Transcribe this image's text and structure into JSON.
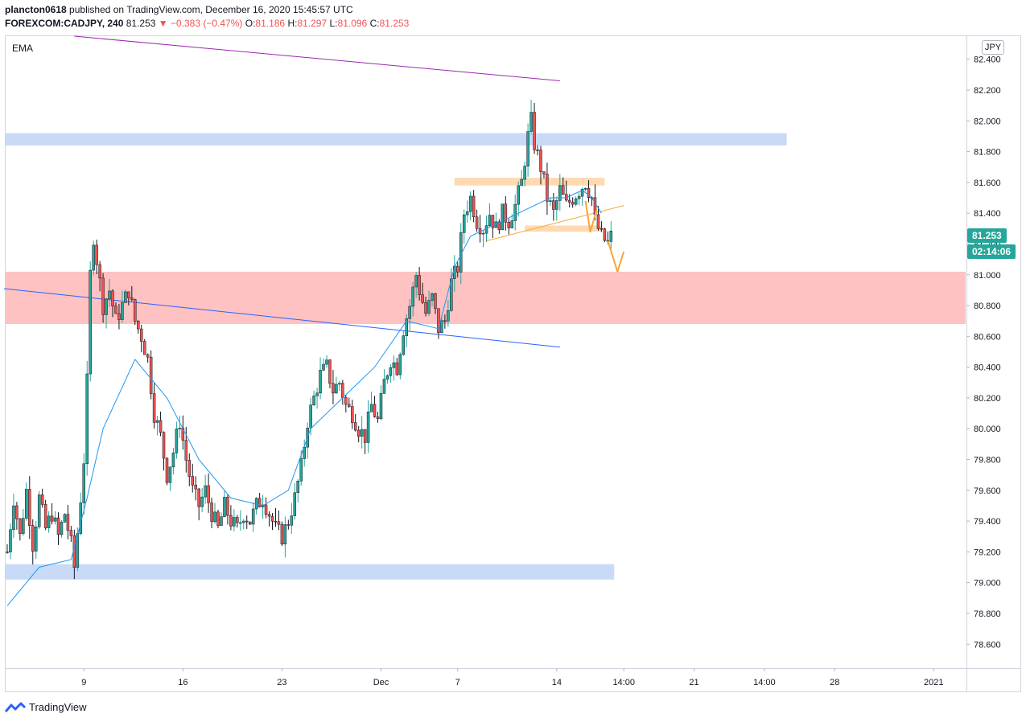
{
  "header": {
    "publisher": "plancton0618",
    "published_text": "published on TradingView.com, December 16, 2020 15:45:57 UTC",
    "symbol": "FOREXCOM:CADJPY",
    "interval": ", 240",
    "last": "81.253",
    "change": "▼ −0.383 (−0.47%)",
    "o_label": "O:",
    "o_value": "81.186",
    "h_label": "H:",
    "h_value": "81.297",
    "l_label": "L:",
    "l_value": "81.096",
    "c_label": "C:",
    "c_value": "81.253"
  },
  "indicator_label": "EMA",
  "currency_badge": "JPY",
  "price_tag": "81.253",
  "countdown_tag": "02:14:06",
  "footer": {
    "brand": "TradingView"
  },
  "colors": {
    "up": "#26a69a",
    "down": "#ef5350",
    "candle": "#131722",
    "ema": "#2196f3",
    "blue_zone": "#bbd1f5",
    "red_zone": "#ffb3b3",
    "orange_zone": "#ffd5a8",
    "purple_line": "#9c27b0",
    "orange_line": "#f7a634"
  },
  "chart_data": {
    "type": "candlestick",
    "title": "FOREXCOM:CADJPY, 240",
    "ylim": [
      78.45,
      82.55
    ],
    "xlim": [
      -0.5,
      300
    ],
    "y_ticks": [
      "78.600",
      "78.800",
      "79.000",
      "79.200",
      "79.400",
      "79.600",
      "79.800",
      "80.000",
      "80.200",
      "80.400",
      "80.600",
      "80.800",
      "81.000",
      "81.200",
      "81.400",
      "81.600",
      "81.800",
      "82.000",
      "82.200",
      "82.400"
    ],
    "x_ticks": [
      {
        "label": "9",
        "x": 24
      },
      {
        "label": "16",
        "x": 55
      },
      {
        "label": "23",
        "x": 86
      },
      {
        "label": "Dec",
        "x": 117
      },
      {
        "label": "7",
        "x": 141
      },
      {
        "label": "14",
        "x": 172
      },
      {
        "label": "14:00",
        "x": 193
      },
      {
        "label": "21",
        "x": 215
      },
      {
        "label": "14:00",
        "x": 237
      },
      {
        "label": "28",
        "x": 259
      },
      {
        "label": "2021",
        "x": 290
      }
    ],
    "close_path": [
      [
        0,
        79.2
      ],
      [
        2,
        79.55
      ],
      [
        4,
        79.3
      ],
      [
        6,
        79.6
      ],
      [
        8,
        79.25
      ],
      [
        10,
        79.55
      ],
      [
        12,
        79.35
      ],
      [
        14,
        79.45
      ],
      [
        16,
        79.3
      ],
      [
        18,
        79.45
      ],
      [
        20,
        79.25
      ],
      [
        21,
        79.1
      ],
      [
        23,
        79.55
      ],
      [
        24,
        79.8
      ],
      [
        25,
        80.3
      ],
      [
        26,
        81.0
      ],
      [
        27,
        81.25
      ],
      [
        28,
        81.1
      ],
      [
        30,
        80.8
      ],
      [
        32,
        80.9
      ],
      [
        34,
        80.7
      ],
      [
        36,
        80.8
      ],
      [
        38,
        80.9
      ],
      [
        40,
        80.7
      ],
      [
        42,
        80.6
      ],
      [
        44,
        80.45
      ],
      [
        46,
        80.1
      ],
      [
        48,
        79.95
      ],
      [
        50,
        79.7
      ],
      [
        52,
        79.85
      ],
      [
        54,
        80.05
      ],
      [
        56,
        79.8
      ],
      [
        58,
        79.6
      ],
      [
        60,
        79.5
      ],
      [
        62,
        79.6
      ],
      [
        64,
        79.45
      ],
      [
        66,
        79.35
      ],
      [
        68,
        79.5
      ],
      [
        70,
        79.4
      ],
      [
        72,
        79.35
      ],
      [
        74,
        79.45
      ],
      [
        76,
        79.4
      ],
      [
        78,
        79.5
      ],
      [
        80,
        79.55
      ],
      [
        82,
        79.45
      ],
      [
        84,
        79.35
      ],
      [
        86,
        79.3
      ],
      [
        88,
        79.4
      ],
      [
        90,
        79.55
      ],
      [
        92,
        79.75
      ],
      [
        94,
        80.05
      ],
      [
        96,
        80.2
      ],
      [
        98,
        80.35
      ],
      [
        100,
        80.4
      ],
      [
        102,
        80.25
      ],
      [
        104,
        80.3
      ],
      [
        106,
        80.15
      ],
      [
        108,
        80.1
      ],
      [
        110,
        80.0
      ],
      [
        112,
        79.95
      ],
      [
        114,
        80.15
      ],
      [
        116,
        80.05
      ],
      [
        118,
        80.3
      ],
      [
        120,
        80.45
      ],
      [
        122,
        80.4
      ],
      [
        124,
        80.65
      ],
      [
        126,
        80.8
      ],
      [
        128,
        81.0
      ],
      [
        129,
        80.9
      ],
      [
        131,
        80.75
      ],
      [
        133,
        80.85
      ],
      [
        135,
        80.65
      ],
      [
        137,
        80.7
      ],
      [
        139,
        80.95
      ],
      [
        141,
        81.05
      ],
      [
        143,
        81.4
      ],
      [
        145,
        81.5
      ],
      [
        147,
        81.35
      ],
      [
        149,
        81.3
      ],
      [
        151,
        81.4
      ],
      [
        153,
        81.3
      ],
      [
        155,
        81.4
      ],
      [
        157,
        81.35
      ],
      [
        159,
        81.45
      ],
      [
        161,
        81.6
      ],
      [
        163,
        81.9
      ],
      [
        164,
        82.0
      ],
      [
        165,
        81.85
      ],
      [
        167,
        81.7
      ],
      [
        169,
        81.5
      ],
      [
        171,
        81.4
      ],
      [
        173,
        81.55
      ],
      [
        175,
        81.45
      ],
      [
        177,
        81.5
      ],
      [
        179,
        81.55
      ],
      [
        181,
        81.6
      ],
      [
        183,
        81.5
      ],
      [
        184,
        81.35
      ],
      [
        186,
        81.25
      ],
      [
        188,
        81.2
      ],
      [
        189,
        81.25
      ]
    ],
    "series": [
      {
        "name": "EMA",
        "x": [
          0,
          10,
          20,
          25,
          30,
          40,
          50,
          60,
          70,
          80,
          88,
          95,
          105,
          115,
          125,
          135,
          140,
          145,
          150,
          155,
          160,
          170,
          175,
          180,
          183,
          186
        ],
        "values": [
          78.85,
          79.1,
          79.15,
          79.55,
          80.0,
          80.45,
          80.2,
          79.8,
          79.55,
          79.5,
          79.6,
          80.0,
          80.2,
          80.4,
          80.7,
          80.65,
          81.05,
          81.25,
          81.3,
          81.35,
          81.4,
          81.5,
          81.5,
          81.55,
          81.5,
          81.4
        ]
      }
    ],
    "zones": [
      {
        "name": "resistance-zone-blue",
        "x": [
          -1,
          244
        ],
        "y": [
          81.84,
          81.92
        ],
        "color": "#bbd1f5"
      },
      {
        "name": "support-zone-red",
        "x": [
          -1,
          300
        ],
        "y": [
          80.68,
          81.02
        ],
        "color": "#ffb3b3"
      },
      {
        "name": "support-zone-blue",
        "x": [
          -1,
          190
        ],
        "y": [
          79.02,
          79.12
        ],
        "color": "#bbd1f5"
      },
      {
        "name": "orange-zone-top",
        "x": [
          140,
          187
        ],
        "y": [
          81.58,
          81.63
        ],
        "color": "#ffd5a8"
      },
      {
        "name": "orange-zone-mid",
        "x": [
          162,
          186
        ],
        "y": [
          81.28,
          81.32
        ],
        "color": "#ffd5a8"
      }
    ],
    "lines": [
      {
        "name": "purple-trendline",
        "x": [
          21,
          173
        ],
        "y": [
          82.55,
          82.26
        ],
        "color": "#9c27b0"
      },
      {
        "name": "blue-trendline",
        "x": [
          -1,
          173
        ],
        "y": [
          80.91,
          80.53
        ],
        "color": "#2962ff"
      },
      {
        "name": "orange-trendline",
        "x": [
          150,
          193
        ],
        "y": [
          81.22,
          81.45
        ],
        "color": "#f7a634"
      }
    ],
    "arrows": [
      {
        "name": "orange-arrow-zigzag",
        "x": [
          181,
          182.5,
          184.5
        ],
        "y": [
          81.48,
          81.28,
          81.42
        ],
        "color": "#f7a634"
      },
      {
        "name": "orange-arrow-down",
        "x": [
          188,
          191,
          193
        ],
        "y": [
          81.22,
          81.02,
          81.15
        ],
        "color": "#f7a634"
      }
    ]
  }
}
